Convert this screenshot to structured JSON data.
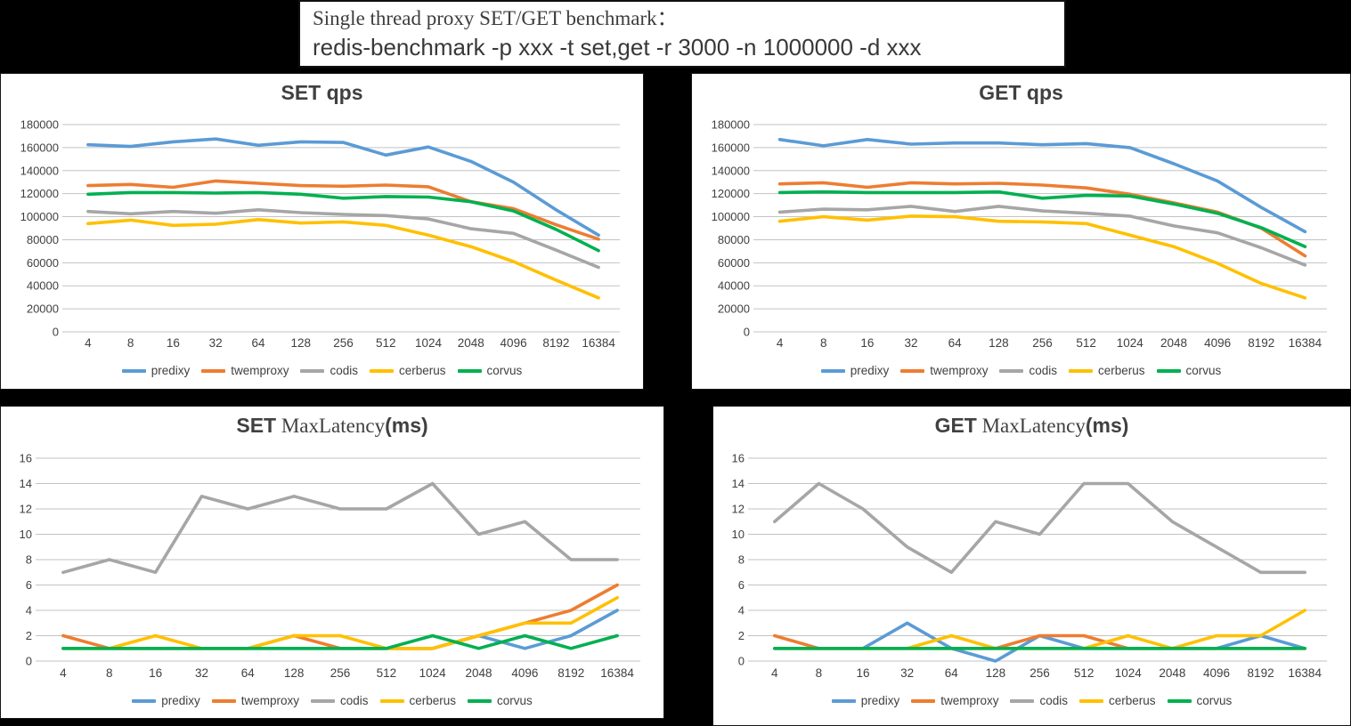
{
  "page_background": "#000000",
  "header": {
    "line1": "Single thread proxy SET/GET benchmark：",
    "line2": "redis-benchmark -p xxx -t set,get -r 3000 -n 1000000 -d xxx"
  },
  "palette": {
    "predixy": "#5B9BD5",
    "twemproxy": "#ED7D31",
    "codis": "#A6A6A6",
    "cerberus": "#FFC000",
    "corvus": "#00B050",
    "gridline": "#C3C3C3",
    "axis_text": "#404040",
    "panel_background": "#FFFFFF"
  },
  "legend_entries": [
    "predixy",
    "twemproxy",
    "codis",
    "cerberus",
    "corvus"
  ],
  "chart_data": [
    {
      "type": "line",
      "title_parts": {
        "t1": "SET  qps",
        "t2": "",
        "t3": ""
      },
      "full_title": "SET qps",
      "categories": [
        "4",
        "8",
        "16",
        "32",
        "64",
        "128",
        "256",
        "512",
        "1024",
        "2048",
        "4096",
        "8192",
        "16384"
      ],
      "ylim": [
        0,
        180000
      ],
      "ytick_step": 20000,
      "grid": true,
      "legend_position": "bottom",
      "series": [
        {
          "name": "predixy",
          "color": "#5B9BD5",
          "values": [
            162500,
            161000,
            165000,
            167500,
            162000,
            165000,
            164500,
            153500,
            160500,
            148000,
            130000,
            106000,
            84000
          ]
        },
        {
          "name": "twemproxy",
          "color": "#ED7D31",
          "values": [
            127000,
            128000,
            125500,
            131000,
            129000,
            127000,
            126500,
            127500,
            126000,
            113000,
            107000,
            93000,
            80500
          ]
        },
        {
          "name": "codis",
          "color": "#A6A6A6",
          "values": [
            104500,
            102500,
            104500,
            103000,
            106000,
            103500,
            102000,
            101000,
            98000,
            89500,
            85500,
            71000,
            56000
          ]
        },
        {
          "name": "cerberus",
          "color": "#FFC000",
          "values": [
            94000,
            97000,
            92500,
            93500,
            97500,
            94500,
            95500,
            92500,
            84000,
            74000,
            61000,
            45000,
            29500
          ]
        },
        {
          "name": "corvus",
          "color": "#00B050",
          "values": [
            119500,
            121000,
            121000,
            120500,
            121000,
            119500,
            116000,
            117500,
            117000,
            113000,
            105000,
            89000,
            70500
          ]
        }
      ]
    },
    {
      "type": "line",
      "title_parts": {
        "t1": "GET  qps",
        "t2": "",
        "t3": ""
      },
      "full_title": "GET qps",
      "categories": [
        "4",
        "8",
        "16",
        "32",
        "64",
        "128",
        "256",
        "512",
        "1024",
        "2048",
        "4096",
        "8192",
        "16384"
      ],
      "ylim": [
        0,
        180000
      ],
      "ytick_step": 20000,
      "grid": true,
      "legend_position": "bottom",
      "series": [
        {
          "name": "predixy",
          "color": "#5B9BD5",
          "values": [
            167000,
            161500,
            167000,
            163000,
            164000,
            164000,
            162500,
            163500,
            160000,
            146000,
            131000,
            108000,
            87000
          ]
        },
        {
          "name": "twemproxy",
          "color": "#ED7D31",
          "values": [
            128500,
            129500,
            125500,
            129500,
            128500,
            129000,
            127500,
            125000,
            119500,
            112000,
            104000,
            90000,
            66000
          ]
        },
        {
          "name": "codis",
          "color": "#A6A6A6",
          "values": [
            104000,
            106500,
            106000,
            109000,
            104500,
            109000,
            105000,
            103000,
            100500,
            92000,
            86000,
            73000,
            58000
          ]
        },
        {
          "name": "cerberus",
          "color": "#FFC000",
          "values": [
            96000,
            100000,
            97000,
            100500,
            100000,
            96000,
            95500,
            94000,
            84000,
            74000,
            59500,
            42000,
            29500
          ]
        },
        {
          "name": "corvus",
          "color": "#00B050",
          "values": [
            121000,
            121500,
            121000,
            121000,
            121000,
            121500,
            116000,
            118500,
            118000,
            111000,
            103000,
            90500,
            74000
          ]
        }
      ]
    },
    {
      "type": "line",
      "title_parts": {
        "t1": "SET",
        "t2": " MaxLatency",
        "t3": "(ms)"
      },
      "full_title": "SET MaxLatency(ms)",
      "categories": [
        "4",
        "8",
        "16",
        "32",
        "64",
        "128",
        "256",
        "512",
        "1024",
        "2048",
        "4096",
        "8192",
        "16384"
      ],
      "ylim": [
        0,
        16
      ],
      "ytick_step": 2,
      "grid": true,
      "legend_position": "bottom",
      "series": [
        {
          "name": "predixy",
          "color": "#5B9BD5",
          "values": [
            1,
            1,
            1,
            1,
            1,
            1,
            1,
            1,
            1,
            2,
            1,
            2,
            4
          ]
        },
        {
          "name": "twemproxy",
          "color": "#ED7D31",
          "values": [
            2,
            1,
            1,
            1,
            1,
            2,
            1,
            1,
            1,
            2,
            3,
            4,
            6
          ]
        },
        {
          "name": "codis",
          "color": "#A6A6A6",
          "values": [
            7,
            8,
            7,
            13,
            12,
            13,
            12,
            12,
            14,
            10,
            11,
            8,
            8
          ]
        },
        {
          "name": "cerberus",
          "color": "#FFC000",
          "values": [
            1,
            1,
            2,
            1,
            1,
            2,
            2,
            1,
            1,
            2,
            3,
            3,
            5
          ]
        },
        {
          "name": "corvus",
          "color": "#00B050",
          "values": [
            1,
            1,
            1,
            1,
            1,
            1,
            1,
            1,
            2,
            1,
            2,
            1,
            2
          ]
        }
      ]
    },
    {
      "type": "line",
      "title_parts": {
        "t1": "GET",
        "t2": " MaxLatency",
        "t3": "(ms)"
      },
      "full_title": "GET MaxLatency(ms)",
      "categories": [
        "4",
        "8",
        "16",
        "32",
        "64",
        "128",
        "256",
        "512",
        "1024",
        "2048",
        "4096",
        "8192",
        "16384"
      ],
      "ylim": [
        0,
        16
      ],
      "ytick_step": 2,
      "grid": true,
      "legend_position": "bottom",
      "series": [
        {
          "name": "predixy",
          "color": "#5B9BD5",
          "values": [
            1,
            1,
            1,
            3,
            1,
            0,
            2,
            1,
            1,
            1,
            1,
            2,
            1
          ]
        },
        {
          "name": "twemproxy",
          "color": "#ED7D31",
          "values": [
            2,
            1,
            1,
            1,
            1,
            1,
            2,
            2,
            1,
            1,
            1,
            1,
            1
          ]
        },
        {
          "name": "codis",
          "color": "#A6A6A6",
          "values": [
            11,
            14,
            12,
            9,
            7,
            11,
            10,
            14,
            14,
            11,
            9,
            7,
            7
          ]
        },
        {
          "name": "cerberus",
          "color": "#FFC000",
          "values": [
            1,
            1,
            1,
            1,
            2,
            1,
            1,
            1,
            2,
            1,
            2,
            2,
            4
          ]
        },
        {
          "name": "corvus",
          "color": "#00B050",
          "values": [
            1,
            1,
            1,
            1,
            1,
            1,
            1,
            1,
            1,
            1,
            1,
            1,
            1
          ]
        }
      ]
    }
  ]
}
